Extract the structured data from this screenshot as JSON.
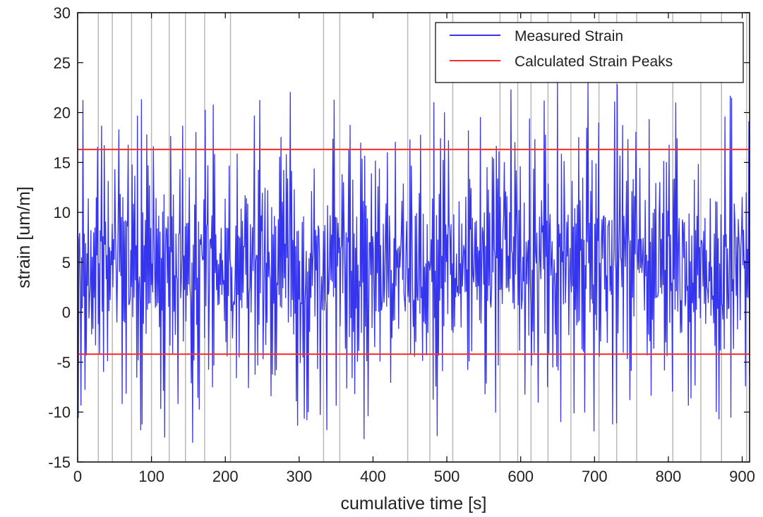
{
  "chart_data": {
    "type": "line",
    "xlabel": "cumulative time [s]",
    "ylabel": "strain [um/m]",
    "xlim": [
      0,
      910
    ],
    "ylim": [
      -15,
      30
    ],
    "xticks": [
      0,
      100,
      200,
      300,
      400,
      500,
      600,
      700,
      800,
      900
    ],
    "yticks": [
      -15,
      -10,
      -5,
      0,
      5,
      10,
      15,
      20,
      25,
      30
    ],
    "legend": {
      "position": "top-right"
    },
    "colors": {
      "measured": "#3535ee",
      "peaks": "#ff2a2a",
      "vertical_markers": "#b8b8b8"
    },
    "vertical_markers": [
      28,
      47,
      73,
      100,
      124,
      146,
      172,
      207,
      333,
      355,
      447,
      477,
      508,
      572,
      596,
      614,
      637,
      668,
      706,
      730,
      757,
      806,
      844,
      872,
      906
    ],
    "series": [
      {
        "name": "Measured Strain",
        "kind": "signal",
        "x_range": [
          0,
          910
        ],
        "mean": 4,
        "amplitude": 10,
        "min": -14.5,
        "max": 24.5
      },
      {
        "name": "Calculated Strain Peaks",
        "kind": "hlines",
        "values": [
          16.3,
          -4.2
        ]
      }
    ]
  }
}
